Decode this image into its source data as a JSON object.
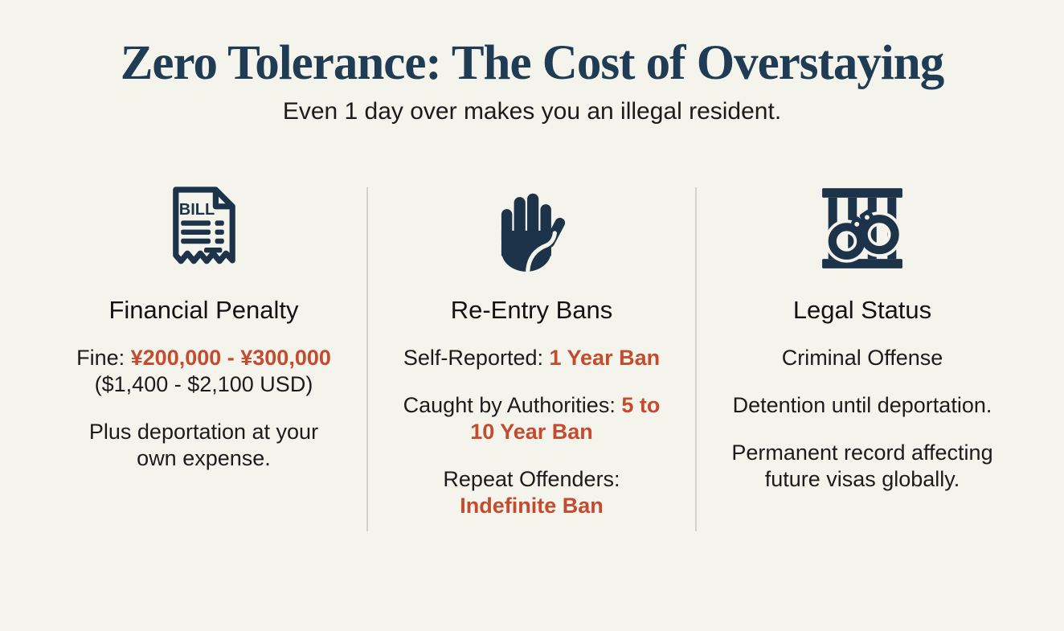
{
  "page": {
    "title": "Zero Tolerance: The Cost of Overstaying",
    "subtitle": "Even 1 day over makes you an illegal resident."
  },
  "colors": {
    "background": "#f5f4ec",
    "navy": "#203c55",
    "icon_navy": "#1c3349",
    "text": "#1b1b1d",
    "accent_red": "#c44b2e",
    "divider": "#d2d1ca"
  },
  "columns": [
    {
      "icon": "bill-receipt-icon",
      "icon_label": "BILL",
      "heading": "Financial Penalty",
      "blocks": [
        {
          "lines": [
            [
              {
                "text": "Fine: "
              },
              {
                "text": "¥200,000 - ¥300,000",
                "accent": true
              }
            ],
            [
              {
                "text": "($1,400 - $2,100 USD)"
              }
            ]
          ]
        },
        {
          "lines": [
            [
              {
                "text": "Plus deportation at your"
              }
            ],
            [
              {
                "text": "own expense."
              }
            ]
          ]
        }
      ]
    },
    {
      "icon": "stop-hand-icon",
      "heading": "Re-Entry Bans",
      "blocks": [
        {
          "lines": [
            [
              {
                "text": "Self-Reported: "
              },
              {
                "text": "1 Year Ban",
                "accent": true
              }
            ]
          ]
        },
        {
          "lines": [
            [
              {
                "text": "Caught by Authorities: "
              },
              {
                "text": "5 to",
                "accent": true
              }
            ],
            [
              {
                "text": "10 Year Ban",
                "accent": true
              }
            ]
          ]
        },
        {
          "lines": [
            [
              {
                "text": "Repeat Offenders:"
              }
            ],
            [
              {
                "text": "Indefinite Ban",
                "accent": true
              }
            ]
          ]
        }
      ]
    },
    {
      "icon": "handcuffs-jail-bars-icon",
      "heading": "Legal Status",
      "blocks": [
        {
          "lines": [
            [
              {
                "text": "Criminal Offense"
              }
            ]
          ]
        },
        {
          "lines": [
            [
              {
                "text": "Detention until deportation."
              }
            ]
          ]
        },
        {
          "lines": [
            [
              {
                "text": "Permanent record affecting"
              }
            ],
            [
              {
                "text": "future visas globally."
              }
            ]
          ]
        }
      ]
    }
  ]
}
